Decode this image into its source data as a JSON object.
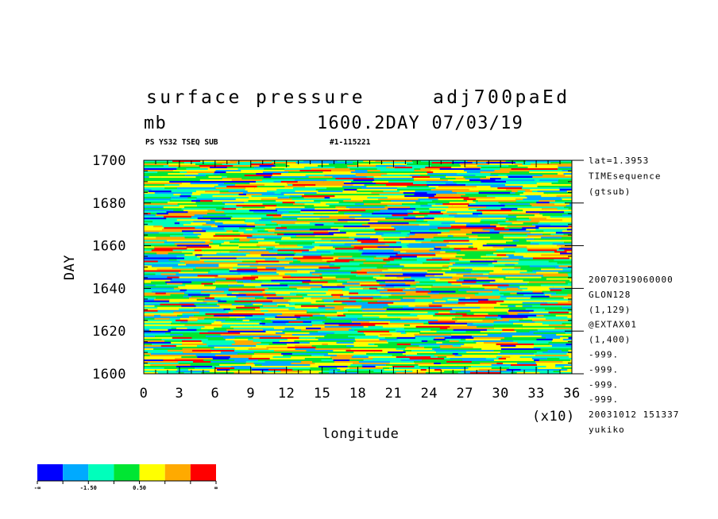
{
  "header": {
    "variable": "surface pressure",
    "dataset": "adj700paEd",
    "unit": "mb",
    "time_stamp": "1600.2DAY 07/03/19",
    "tag_left": "PS YS32 TSEQ SUB",
    "tag_right": "#1-115221"
  },
  "side_info": {
    "lines_top": [
      "lat=1.3953",
      "TIMEsequence",
      "(gtsub)"
    ],
    "lines_bottom": [
      "20070319060000",
      "GLON128",
      "(1,129)",
      "@EXTAX01",
      "(1,400)",
      "-999.",
      "-999.",
      "-999.",
      "-999.",
      "20031012 151337",
      "yukiko"
    ]
  },
  "chart_data": {
    "type": "heatmap",
    "title": "surface pressure",
    "xlabel": "longitude",
    "ylabel": "DAY",
    "x_multiplier_label": "(x10)",
    "xlim": [
      0,
      36
    ],
    "ylim": [
      1600,
      1700
    ],
    "x_ticks": [
      "0",
      "3",
      "6",
      "9",
      "12",
      "15",
      "18",
      "21",
      "24",
      "27",
      "30",
      "33",
      "36"
    ],
    "y_ticks": [
      "1600",
      "1620",
      "1640",
      "1660",
      "1680",
      "1700"
    ],
    "colorbar": {
      "colors": [
        "#0000ff",
        "#00aaff",
        "#00ffbb",
        "#00e633",
        "#ffff00",
        "#ffaa00",
        "#ff0000"
      ],
      "labels": [
        "-∞",
        "-1.50",
        "0.50",
        "∞"
      ]
    }
  }
}
